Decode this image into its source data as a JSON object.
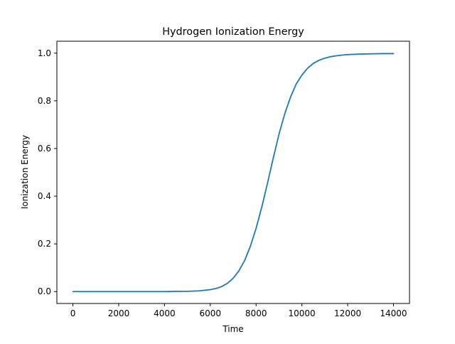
{
  "chart_data": {
    "type": "line",
    "title": "Hydrogen Ionization Energy",
    "xlabel": "Time",
    "ylabel": "Ionization Energy",
    "xlim": [
      -700,
      14700
    ],
    "ylim": [
      -0.05,
      1.05
    ],
    "xticks": [
      0,
      2000,
      4000,
      6000,
      8000,
      10000,
      12000,
      14000
    ],
    "yticks": [
      0.0,
      0.2,
      0.4,
      0.6,
      0.8,
      1.0
    ],
    "xtick_labels": [
      "0",
      "2000",
      "4000",
      "6000",
      "8000",
      "10000",
      "12000",
      "14000"
    ],
    "ytick_labels": [
      "0.0",
      "0.2",
      "0.4",
      "0.6",
      "0.8",
      "1.0"
    ],
    "grid": false,
    "series": [
      {
        "color": "#1f77b4",
        "x": [
          0,
          1000,
          2000,
          3000,
          4000,
          4500,
          5000,
          5500,
          6000,
          6250,
          6500,
          6750,
          7000,
          7250,
          7500,
          7750,
          8000,
          8250,
          8500,
          8750,
          9000,
          9250,
          9500,
          9750,
          10000,
          10250,
          10500,
          10750,
          11000,
          11250,
          11500,
          11750,
          12000,
          12500,
          13000,
          13500,
          14000
        ],
        "y": [
          0.0,
          0.0,
          0.0,
          0.0,
          0.0,
          0.001,
          0.001,
          0.003,
          0.008,
          0.013,
          0.021,
          0.035,
          0.056,
          0.087,
          0.13,
          0.19,
          0.265,
          0.355,
          0.455,
          0.56,
          0.66,
          0.745,
          0.815,
          0.87,
          0.908,
          0.937,
          0.957,
          0.97,
          0.979,
          0.985,
          0.989,
          0.992,
          0.994,
          0.996,
          0.997,
          0.998,
          0.998
        ]
      }
    ]
  }
}
